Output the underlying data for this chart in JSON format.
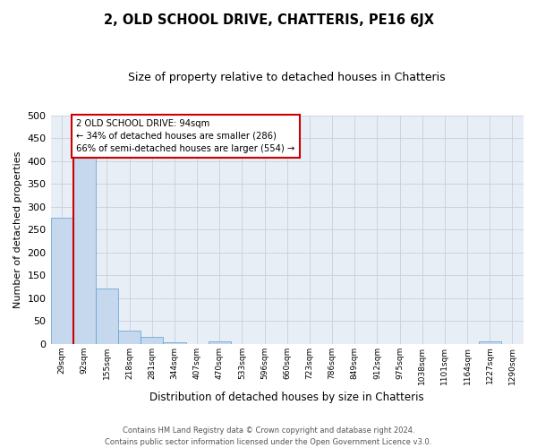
{
  "title": "2, OLD SCHOOL DRIVE, CHATTERIS, PE16 6JX",
  "subtitle": "Size of property relative to detached houses in Chatteris",
  "xlabel": "Distribution of detached houses by size in Chatteris",
  "ylabel": "Number of detached properties",
  "bar_labels": [
    "29sqm",
    "92sqm",
    "155sqm",
    "218sqm",
    "281sqm",
    "344sqm",
    "407sqm",
    "470sqm",
    "533sqm",
    "596sqm",
    "660sqm",
    "723sqm",
    "786sqm",
    "849sqm",
    "912sqm",
    "975sqm",
    "1038sqm",
    "1101sqm",
    "1164sqm",
    "1227sqm",
    "1290sqm"
  ],
  "bar_heights": [
    277,
    408,
    122,
    29,
    16,
    4,
    0,
    6,
    0,
    0,
    0,
    0,
    0,
    0,
    0,
    0,
    0,
    0,
    0,
    5,
    0
  ],
  "bar_color": "#c5d8ed",
  "bar_edge_color": "#5a9fd4",
  "bg_color": "#e8eef6",
  "grid_color": "#c8d0dc",
  "vline_x_index": 1,
  "vline_color": "#cc0000",
  "annotation_text": "2 OLD SCHOOL DRIVE: 94sqm\n← 34% of detached houses are smaller (286)\n66% of semi-detached houses are larger (554) →",
  "annotation_box_color": "#ffffff",
  "annotation_box_edge": "#cc0000",
  "ylim": [
    0,
    500
  ],
  "yticks": [
    0,
    50,
    100,
    150,
    200,
    250,
    300,
    350,
    400,
    450,
    500
  ],
  "footer_line1": "Contains HM Land Registry data © Crown copyright and database right 2024.",
  "footer_line2": "Contains public sector information licensed under the Open Government Licence v3.0."
}
